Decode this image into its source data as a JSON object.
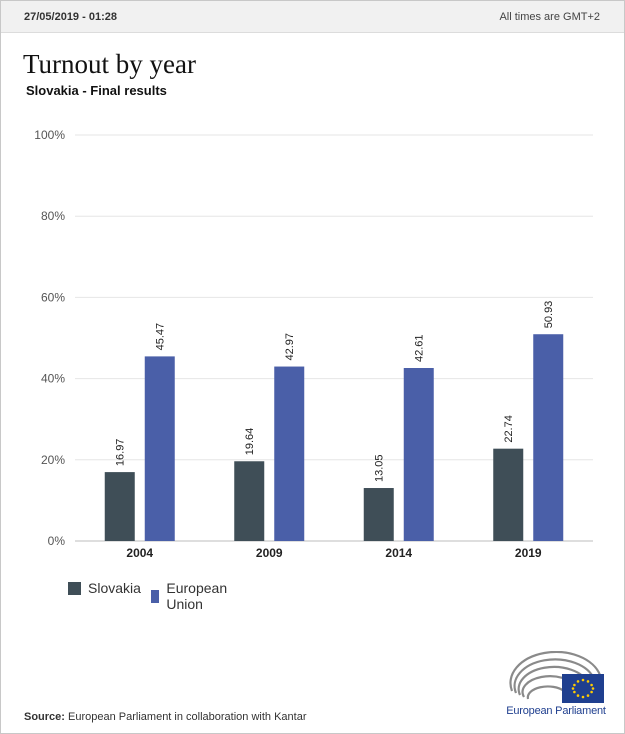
{
  "header": {
    "timestamp": "27/05/2019 - 01:28",
    "timezone_note": "All times are GMT+2"
  },
  "colors": {
    "slovakia": "#3f4e57",
    "eu": "#4a5fa8",
    "grid": "#e6e6e6",
    "logo_blue": "#1f3f8f",
    "eu_flag_star": "#ffcc00"
  },
  "chart_data": {
    "type": "bar",
    "title": "Turnout by year",
    "subtitle": "Slovakia - Final results",
    "categories": [
      "2004",
      "2009",
      "2014",
      "2019"
    ],
    "series": [
      {
        "name": "Slovakia",
        "values": [
          16.97,
          19.64,
          13.05,
          22.74
        ]
      },
      {
        "name": "European Union",
        "values": [
          45.47,
          42.97,
          42.61,
          50.93
        ]
      }
    ],
    "ylim": [
      0,
      100
    ],
    "yticks": [
      "0%",
      "20%",
      "40%",
      "60%",
      "80%",
      "100%"
    ],
    "grid": true,
    "legend_position": "bottom-left"
  },
  "footer": {
    "source_label": "Source:",
    "source_text": " European Parliament in collaboration with Kantar",
    "logo_text": "European Parliament"
  }
}
